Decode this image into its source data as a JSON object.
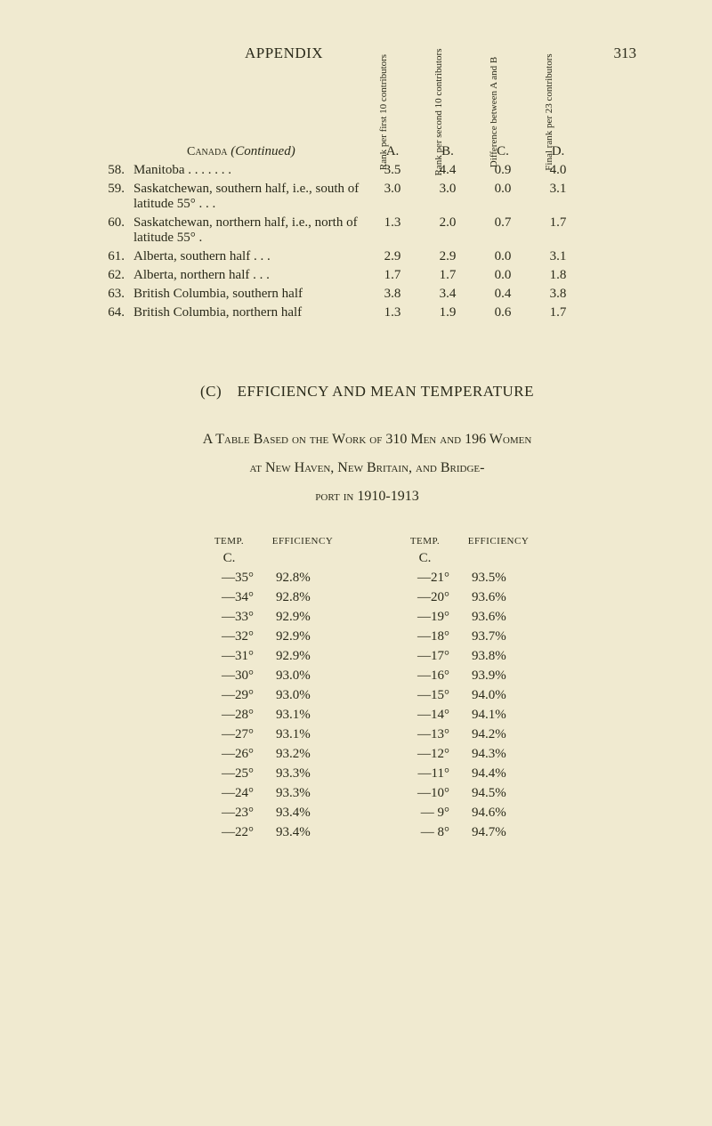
{
  "page": {
    "title": "APPENDIX",
    "number": "313",
    "background_color": "#f0ead0",
    "text_color": "#2a2a1a"
  },
  "table1": {
    "col_headers_rotated": [
      "Rank per\nfirst 10\ncontributors",
      "Rank per\nsecond 10\ncontributors",
      "Difference\nbetween\nA and B",
      "Final rank\nper 23\ncontributors"
    ],
    "caption_prefix": "Canada",
    "caption_suffix": "(Continued)",
    "letter_labels": [
      "A.",
      "B.",
      "C.",
      "D."
    ],
    "rows": [
      {
        "n": "58.",
        "label": "Manitoba . . . . . . .",
        "a": "3.5",
        "b": "4.4",
        "c": "0.9",
        "d": "4.0"
      },
      {
        "n": "59.",
        "label": "Saskatchewan, southern half, i.e., south of latitude 55° . . .",
        "a": "3.0",
        "b": "3.0",
        "c": "0.0",
        "d": "3.1"
      },
      {
        "n": "60.",
        "label": "Saskatchewan, northern half, i.e., north of latitude 55° .",
        "a": "1.3",
        "b": "2.0",
        "c": "0.7",
        "d": "1.7"
      },
      {
        "n": "61.",
        "label": "Alberta, southern half . . .",
        "a": "2.9",
        "b": "2.9",
        "c": "0.0",
        "d": "3.1"
      },
      {
        "n": "62.",
        "label": "Alberta, northern half . . .",
        "a": "1.7",
        "b": "1.7",
        "c": "0.0",
        "d": "1.8"
      },
      {
        "n": "63.",
        "label": "British Columbia, southern half",
        "a": "3.8",
        "b": "3.4",
        "c": "0.4",
        "d": "3.8"
      },
      {
        "n": "64.",
        "label": "British Columbia, northern half",
        "a": "1.3",
        "b": "1.9",
        "c": "0.6",
        "d": "1.7"
      }
    ]
  },
  "section_c": {
    "heading": "(C) EFFICIENCY AND MEAN TEMPERATURE",
    "subtitle_l1": "A Table Based on the Work of 310 Men and 196 Women",
    "subtitle_l2": "at New Haven, New Britain, and Bridge-",
    "subtitle_l3": "port in 1910-1913"
  },
  "eff_table": {
    "head_temp": "TEMP.",
    "head_eff": "EFFICIENCY",
    "subhead": "C.",
    "left": [
      {
        "t": "—35°",
        "e": "92.8%"
      },
      {
        "t": "—34°",
        "e": "92.8%"
      },
      {
        "t": "—33°",
        "e": "92.9%"
      },
      {
        "t": "—32°",
        "e": "92.9%"
      },
      {
        "t": "—31°",
        "e": "92.9%"
      },
      {
        "t": "—30°",
        "e": "93.0%"
      },
      {
        "t": "—29°",
        "e": "93.0%"
      },
      {
        "t": "—28°",
        "e": "93.1%"
      },
      {
        "t": "—27°",
        "e": "93.1%"
      },
      {
        "t": "—26°",
        "e": "93.2%"
      },
      {
        "t": "—25°",
        "e": "93.3%"
      },
      {
        "t": "—24°",
        "e": "93.3%"
      },
      {
        "t": "—23°",
        "e": "93.4%"
      },
      {
        "t": "—22°",
        "e": "93.4%"
      }
    ],
    "right": [
      {
        "t": "—21°",
        "e": "93.5%"
      },
      {
        "t": "—20°",
        "e": "93.6%"
      },
      {
        "t": "—19°",
        "e": "93.6%"
      },
      {
        "t": "—18°",
        "e": "93.7%"
      },
      {
        "t": "—17°",
        "e": "93.8%"
      },
      {
        "t": "—16°",
        "e": "93.9%"
      },
      {
        "t": "—15°",
        "e": "94.0%"
      },
      {
        "t": "—14°",
        "e": "94.1%"
      },
      {
        "t": "—13°",
        "e": "94.2%"
      },
      {
        "t": "—12°",
        "e": "94.3%"
      },
      {
        "t": "—11°",
        "e": "94.4%"
      },
      {
        "t": "—10°",
        "e": "94.5%"
      },
      {
        "t": "— 9°",
        "e": "94.6%"
      },
      {
        "t": "— 8°",
        "e": "94.7%"
      }
    ]
  }
}
